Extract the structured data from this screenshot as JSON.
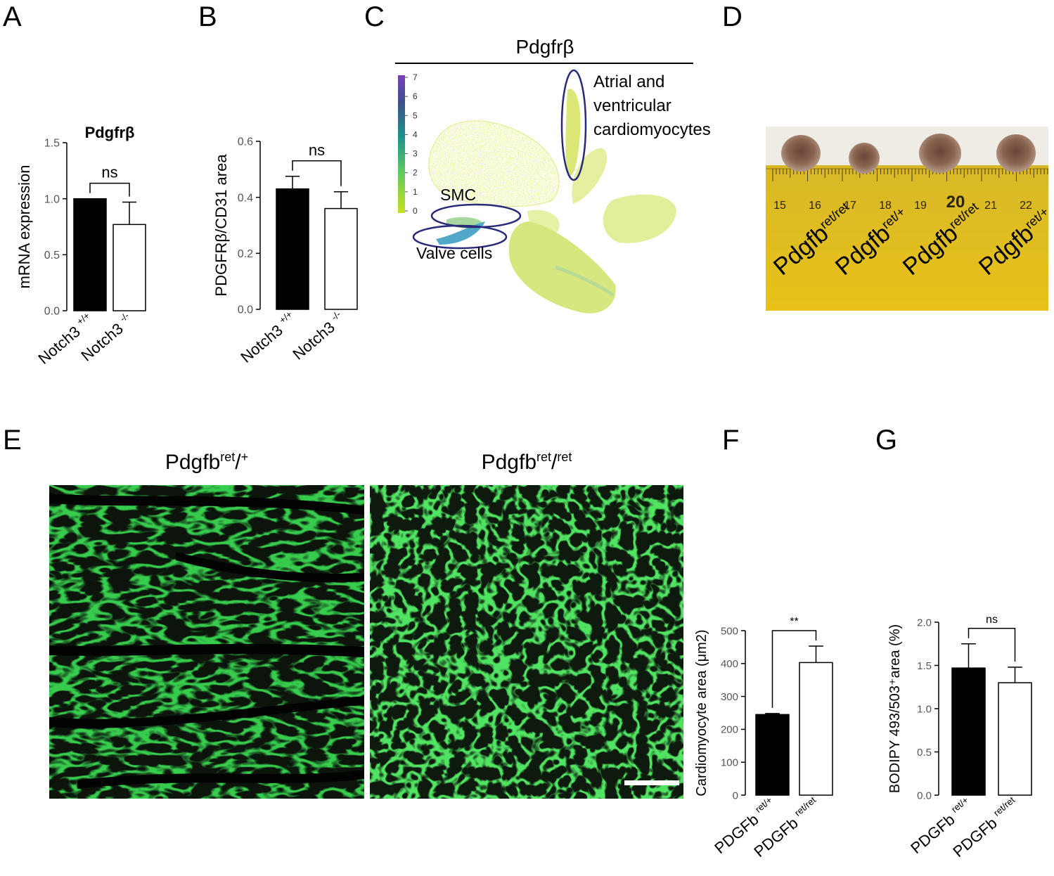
{
  "panels": {
    "A": "A",
    "B": "B",
    "C": "C",
    "D": "D",
    "E": "E",
    "F": "F",
    "G": "G"
  },
  "chart_data": [
    {
      "id": "A",
      "type": "bar",
      "title": "Pdgfrβ",
      "ylabel": "mRNA expression",
      "xlabel": "",
      "ylim": [
        0,
        1.5
      ],
      "yticks": [
        "0.0",
        "0.5",
        "1.0",
        "1.5"
      ],
      "categories": [
        {
          "base": "Notch3 ",
          "sup": "+/+"
        },
        {
          "base": "Notch3 ",
          "sup": "-/-"
        }
      ],
      "values": [
        1.0,
        0.77
      ],
      "errors": [
        0.0,
        0.2
      ],
      "fills": [
        "#000000",
        "#ffffff"
      ],
      "significance": "ns"
    },
    {
      "id": "B",
      "type": "bar",
      "title": "",
      "ylabel": "PDGFRβ/CD31 area",
      "xlabel": "",
      "ylim": [
        0,
        0.6
      ],
      "yticks": [
        "0.0",
        "0.2",
        "0.4",
        "0.6"
      ],
      "categories": [
        {
          "base": "Notch3 ",
          "sup": "+/+"
        },
        {
          "base": "Notch3 ",
          "sup": "-/-"
        }
      ],
      "values": [
        0.43,
        0.36
      ],
      "errors": [
        0.045,
        0.06
      ],
      "fills": [
        "#000000",
        "#ffffff"
      ],
      "significance": "ns"
    },
    {
      "id": "C",
      "type": "scatter",
      "title": "Pdgfrβ",
      "colorbar_ticks": [
        "7",
        "6",
        "5",
        "4",
        "3",
        "2",
        "1",
        "0"
      ],
      "colorbar_range": [
        0,
        7
      ],
      "annotations": [
        "Atrial and",
        "ventricular",
        "cardiomyocytes",
        "SMC",
        "Valve cells"
      ]
    },
    {
      "id": "F",
      "type": "bar",
      "title": "",
      "ylabel": "Cardiomyocyte area (μm2)",
      "xlabel": "",
      "ylim": [
        0,
        500
      ],
      "yticks": [
        "0",
        "100",
        "200",
        "300",
        "400",
        "500"
      ],
      "categories": [
        {
          "base": "PDGFb ",
          "sup": "ret/+"
        },
        {
          "base": "PDGFb ",
          "sup": "ret/ret"
        }
      ],
      "values": [
        245,
        403
      ],
      "errors": [
        3,
        50
      ],
      "fills": [
        "#000000",
        "#ffffff"
      ],
      "significance": "**"
    },
    {
      "id": "G",
      "type": "bar",
      "title": "",
      "ylabel": "BODIPY 493/503⁺area (%)",
      "xlabel": "",
      "ylim": [
        0,
        2.0
      ],
      "yticks": [
        "0.0",
        "0.5",
        "1.0",
        "1.5",
        "2.0"
      ],
      "categories": [
        {
          "base": "PDGFb ",
          "sup": "ret/+"
        },
        {
          "base": "PDGFb ",
          "sup": "ret/ret"
        }
      ],
      "values": [
        1.47,
        1.3
      ],
      "errors": [
        0.28,
        0.18
      ],
      "fills": [
        "#000000",
        "#ffffff"
      ],
      "significance": "ns"
    }
  ],
  "photo_D": {
    "ruler_numbers": [
      "15",
      "16",
      "17",
      "18",
      "19",
      "20",
      "21",
      "22"
    ],
    "labels": [
      {
        "base": "Pdgfb",
        "sup": "ret/ret"
      },
      {
        "base": "Pdgfb",
        "sup": "ret/+"
      },
      {
        "base": "Pdgfb",
        "sup": "ret/ret"
      },
      {
        "base": "Pdgfb",
        "sup": "ret/+"
      }
    ]
  },
  "photo_E": {
    "left_title": {
      "base": "Pdgfb",
      "sup1": "ret",
      "mid": "/",
      "sup2": "+"
    },
    "right_title": {
      "base": "Pdgfb",
      "sup1": "ret",
      "mid": "/",
      "sup2": "ret"
    }
  }
}
